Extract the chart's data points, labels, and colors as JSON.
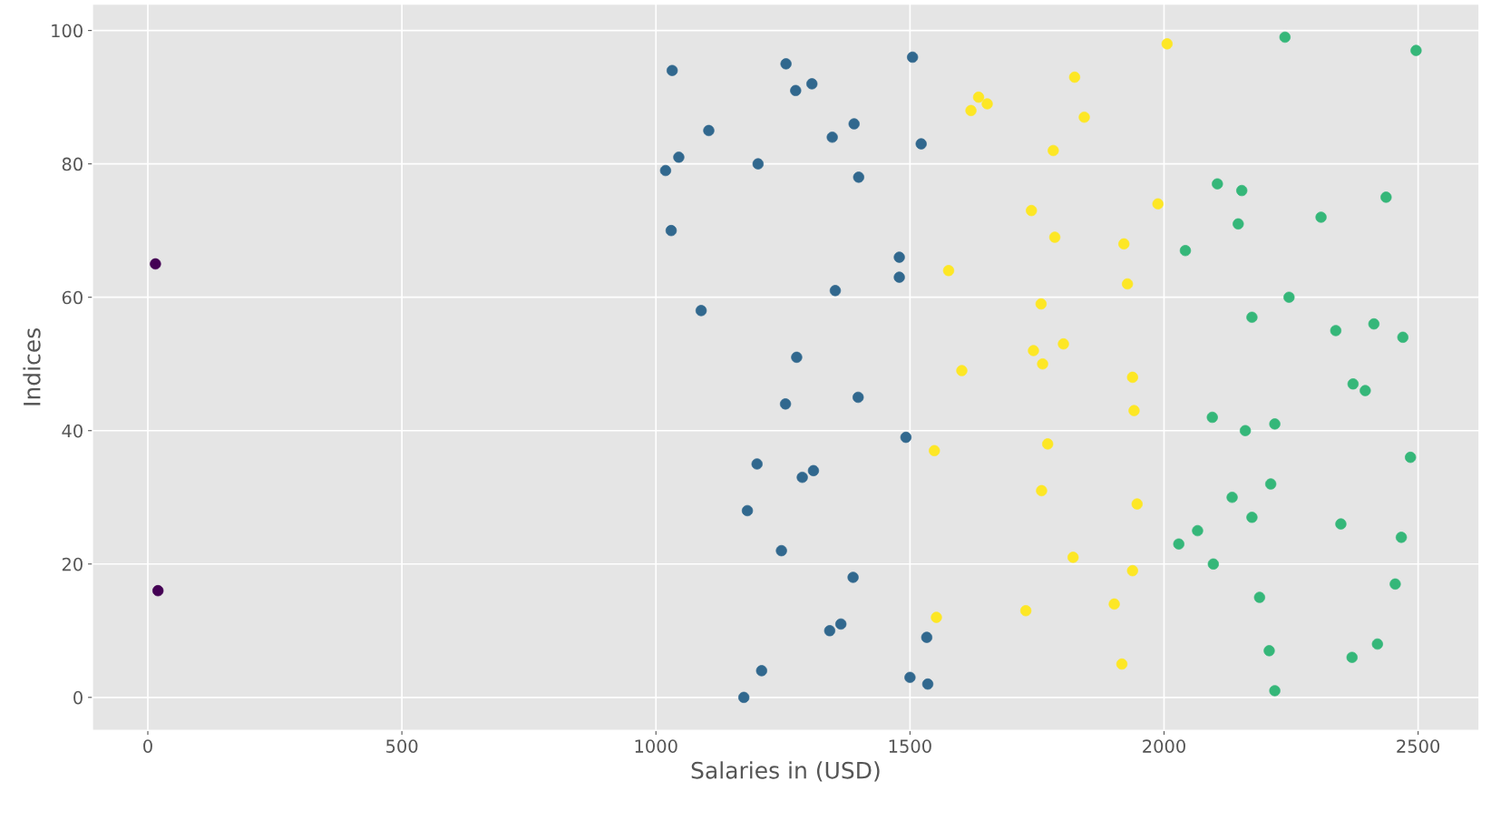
{
  "chart_data": {
    "type": "scatter",
    "xlabel": "Salaries in (USD)",
    "ylabel": "Indices",
    "x": [
      1173,
      2218,
      1535,
      1500,
      1208,
      1917,
      2370,
      2207,
      2420,
      1533,
      1342,
      1364,
      1552,
      1728,
      1902,
      2188,
      20,
      2455,
      1388,
      1938,
      2097,
      1821,
      1247,
      2029,
      2467,
      2066,
      2348,
      2173,
      1180,
      1947,
      2134,
      1759,
      2210,
      1288,
      1310,
      1199,
      2485,
      1548,
      1771,
      1492,
      2160,
      2218,
      2095,
      1941,
      1255,
      1398,
      2396,
      2372,
      1938,
      1602,
      1761,
      1277,
      1743,
      1802,
      2470,
      2338,
      2413,
      2173,
      1089,
      1758,
      2246,
      1353,
      1928,
      1479,
      1576,
      15,
      1479,
      2042,
      1921,
      1785,
      1030,
      2146,
      2309,
      1739,
      1988,
      2437,
      2153,
      2105,
      1399,
      1019,
      1201,
      1045,
      1782,
      1522,
      1347,
      1104,
      1390,
      1843,
      1620,
      1652,
      1635,
      1275,
      1307,
      1824,
      1032,
      1256,
      1505,
      2496,
      2006,
      2238
    ],
    "values": [
      0,
      1,
      2,
      3,
      4,
      5,
      6,
      7,
      8,
      9,
      10,
      11,
      12,
      13,
      14,
      15,
      16,
      17,
      18,
      19,
      20,
      21,
      22,
      23,
      24,
      25,
      26,
      27,
      28,
      29,
      30,
      31,
      32,
      33,
      34,
      35,
      36,
      37,
      38,
      39,
      40,
      41,
      42,
      43,
      44,
      45,
      46,
      47,
      48,
      49,
      50,
      51,
      52,
      53,
      54,
      55,
      56,
      57,
      58,
      59,
      60,
      61,
      62,
      63,
      64,
      65,
      66,
      67,
      68,
      69,
      70,
      71,
      72,
      73,
      74,
      75,
      76,
      77,
      78,
      79,
      80,
      81,
      82,
      83,
      84,
      85,
      86,
      87,
      88,
      89,
      90,
      91,
      92,
      93,
      94,
      95,
      96,
      97,
      98,
      99
    ],
    "colors": [
      "#31688e",
      "#35b779",
      "#31688e",
      "#31688e",
      "#31688e",
      "#fde725",
      "#35b779",
      "#35b779",
      "#35b779",
      "#31688e",
      "#31688e",
      "#31688e",
      "#fde725",
      "#fde725",
      "#fde725",
      "#35b779",
      "#440154",
      "#35b779",
      "#31688e",
      "#fde725",
      "#35b779",
      "#fde725",
      "#31688e",
      "#35b779",
      "#35b779",
      "#35b779",
      "#35b779",
      "#35b779",
      "#31688e",
      "#fde725",
      "#35b779",
      "#fde725",
      "#35b779",
      "#31688e",
      "#31688e",
      "#31688e",
      "#35b779",
      "#fde725",
      "#fde725",
      "#31688e",
      "#35b779",
      "#35b779",
      "#35b779",
      "#fde725",
      "#31688e",
      "#31688e",
      "#35b779",
      "#35b779",
      "#fde725",
      "#fde725",
      "#fde725",
      "#31688e",
      "#fde725",
      "#fde725",
      "#35b779",
      "#35b779",
      "#35b779",
      "#35b779",
      "#31688e",
      "#fde725",
      "#35b779",
      "#31688e",
      "#fde725",
      "#31688e",
      "#fde725",
      "#440154",
      "#31688e",
      "#35b779",
      "#fde725",
      "#fde725",
      "#31688e",
      "#35b779",
      "#35b779",
      "#fde725",
      "#fde725",
      "#35b779",
      "#35b779",
      "#35b779",
      "#31688e",
      "#31688e",
      "#31688e",
      "#31688e",
      "#fde725",
      "#31688e",
      "#31688e",
      "#31688e",
      "#31688e",
      "#fde725",
      "#fde725",
      "#fde725",
      "#fde725",
      "#31688e",
      "#31688e",
      "#fde725",
      "#31688e",
      "#31688e",
      "#31688e",
      "#35b779",
      "#fde725",
      "#35b779"
    ],
    "xlim": [
      -109,
      2620
    ],
    "ylim": [
      -4.95,
      103.95
    ],
    "xticks": [
      0,
      500,
      1000,
      1500,
      2000,
      2500
    ],
    "yticks": [
      0,
      20,
      40,
      60,
      80,
      100
    ],
    "grid": true,
    "marker": "circle"
  }
}
